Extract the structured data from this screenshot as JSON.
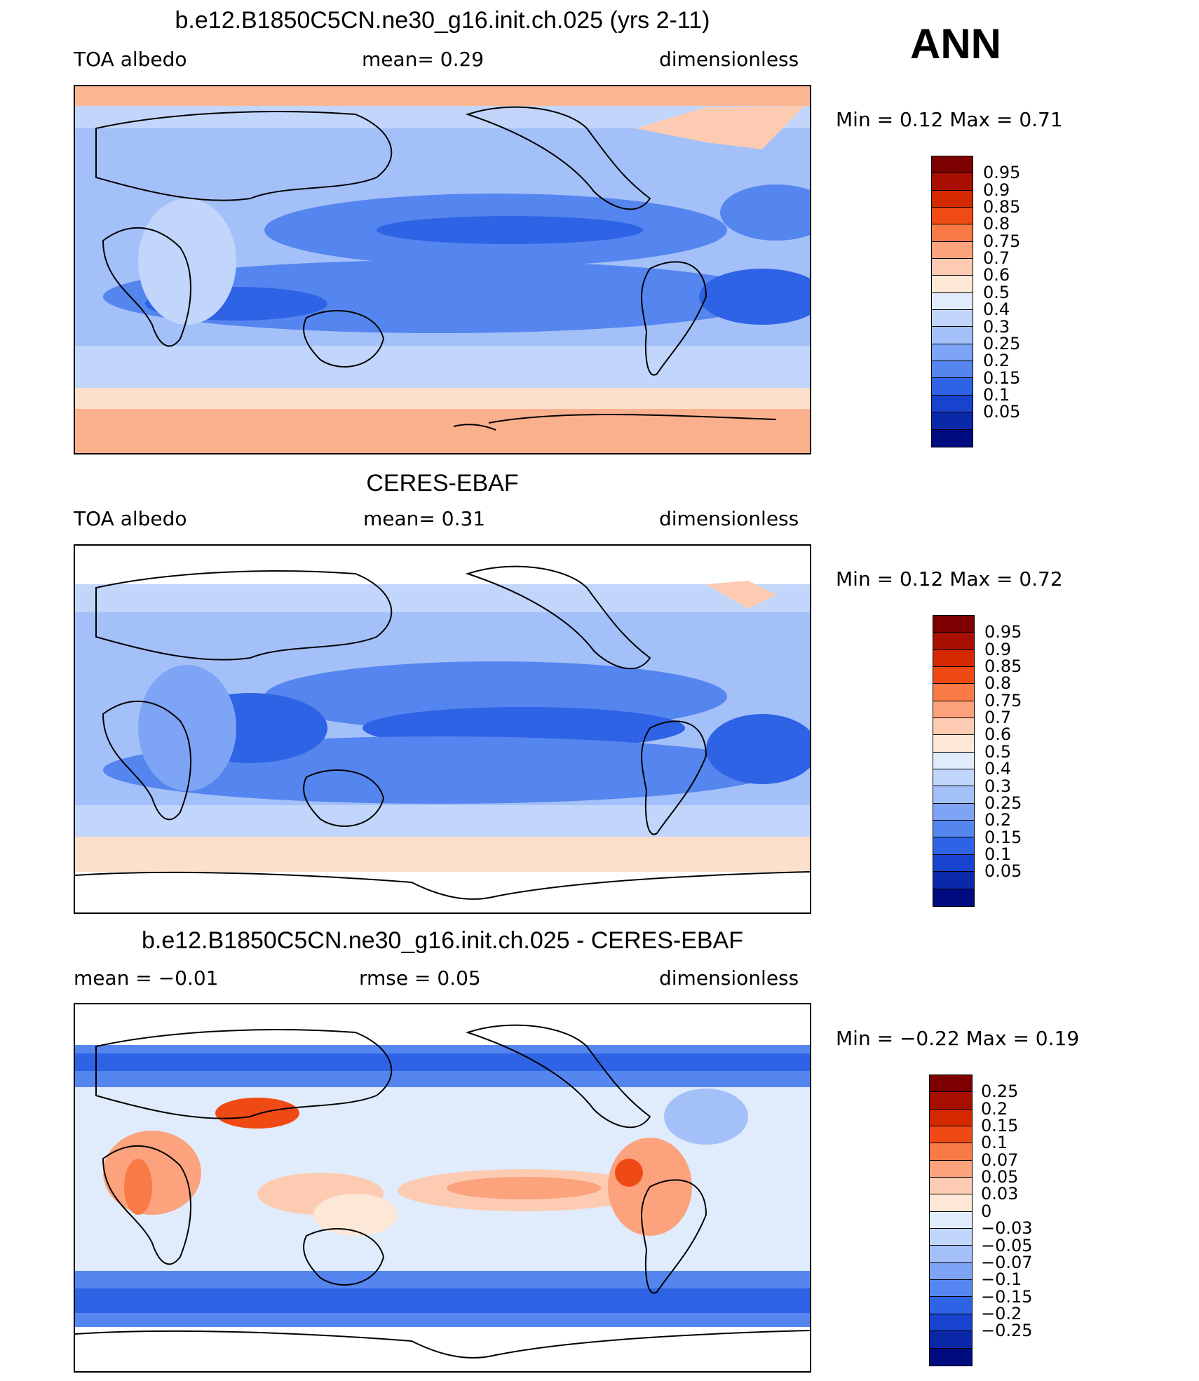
{
  "season": "ANN",
  "panels": [
    {
      "title": "b.e12.B1850C5CN.ne30_g16.init.ch.025 (yrs 2-11)",
      "left": "TOA  albedo",
      "center": "mean=     0.29",
      "right": "dimensionless",
      "minmax": "Min  =       0.12  Max  =       0.71",
      "colors": [
        "#7d0000",
        "#a80f00",
        "#d42800",
        "#f04a14",
        "#fa7a46",
        "#fca27c",
        "#fdcbb1",
        "#fde8d7",
        "#e0ecfb",
        "#c2d6fb",
        "#a4c0f9",
        "#7ea4f5",
        "#5585ee",
        "#2f63e5",
        "#1843cf",
        "#0a28a8",
        "#000b80"
      ],
      "labels": [
        "0.95",
        "0.9",
        "0.85",
        "0.8",
        "0.75",
        "0.7",
        "0.6",
        "0.5",
        "0.4",
        "0.3",
        "0.25",
        "0.2",
        "0.15",
        "0.1",
        "0.05"
      ]
    },
    {
      "title": "CERES-EBAF",
      "left": "TOA  albedo",
      "center": "mean=     0.31",
      "right": "dimensionless",
      "minmax": "Min  =       0.12  Max  =       0.72",
      "colors": [
        "#7d0000",
        "#a80f00",
        "#d42800",
        "#f04a14",
        "#fa7a46",
        "#fca27c",
        "#fdcbb1",
        "#fde8d7",
        "#e0ecfb",
        "#c2d6fb",
        "#a4c0f9",
        "#7ea4f5",
        "#5585ee",
        "#2f63e5",
        "#1843cf",
        "#0a28a8",
        "#000b80"
      ],
      "labels": [
        "0.95",
        "0.9",
        "0.85",
        "0.8",
        "0.75",
        "0.7",
        "0.6",
        "0.5",
        "0.4",
        "0.3",
        "0.25",
        "0.2",
        "0.15",
        "0.1",
        "0.05"
      ]
    },
    {
      "title": "b.e12.B1850C5CN.ne30_g16.init.ch.025 - CERES-EBAF",
      "left": "mean  =     −0.01",
      "center": "rmse  =      0.05",
      "right": "dimensionless",
      "minmax": "Min  =     −0.22  Max  =       0.19",
      "colors": [
        "#7d0000",
        "#a80f00",
        "#d42800",
        "#f04a14",
        "#fa7a46",
        "#fca27c",
        "#fdcbb1",
        "#fde8d7",
        "#e0ecfb",
        "#c2d6fb",
        "#a4c0f9",
        "#7ea4f5",
        "#5585ee",
        "#2f63e5",
        "#1843cf",
        "#0a28a8",
        "#000b80"
      ],
      "labels": [
        "0.25",
        "0.2",
        "0.15",
        "0.1",
        "0.07",
        "0.05",
        "0.03",
        "0",
        "−0.03",
        "−0.05",
        "−0.07",
        "−0.1",
        "−0.15",
        "−0.2",
        "−0.25"
      ]
    }
  ]
}
